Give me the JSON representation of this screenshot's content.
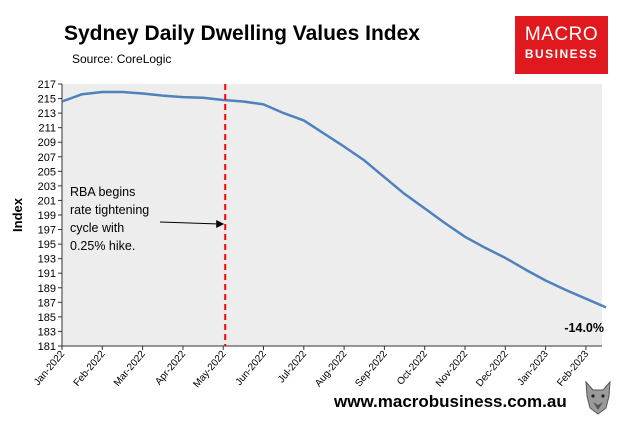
{
  "header": {
    "title": "Sydney Daily Dwelling Values Index",
    "source": "Source: CoreLogic"
  },
  "logo": {
    "line1": "MACRO",
    "line2": "BUSINESS"
  },
  "footer": {
    "website": "www.macrobusiness.com.au"
  },
  "colors": {
    "series": "#4f81bd",
    "plot_bg": "#ededed",
    "marker_line": "#ff0000",
    "logo_bg": "#e0191f"
  },
  "chart_data": {
    "type": "line",
    "title": "Sydney Daily Dwelling Values Index",
    "xlabel": "",
    "ylabel": "Index",
    "ylim": [
      181,
      217
    ],
    "yticks": [
      181,
      183,
      185,
      187,
      189,
      191,
      193,
      195,
      197,
      199,
      201,
      203,
      205,
      207,
      209,
      211,
      213,
      215,
      217
    ],
    "xticks": [
      "Jan-2022",
      "Feb-2022",
      "Mar-2022",
      "Apr-2022",
      "May-2022",
      "Jun-2022",
      "Jul-2022",
      "Aug-2022",
      "Sep-2022",
      "Oct-2022",
      "Nov-2022",
      "Dec-2022",
      "Jan-2023",
      "Feb-2023"
    ],
    "series": [
      {
        "name": "Sydney Daily Dwelling Values Index",
        "x_month_index": [
          0,
          0.5,
          1,
          1.5,
          2,
          2.5,
          3,
          3.5,
          4,
          4.5,
          5,
          5.5,
          6,
          6.5,
          7,
          7.5,
          8,
          8.5,
          9,
          9.5,
          10,
          10.5,
          11,
          11.5,
          12,
          12.5,
          13,
          13.5
        ],
        "values": [
          214.6,
          215.6,
          215.9,
          215.9,
          215.7,
          215.4,
          215.2,
          215.1,
          214.8,
          214.6,
          214.2,
          213.0,
          212.0,
          210.2,
          208.4,
          206.5,
          204.2,
          201.9,
          199.9,
          197.9,
          196.0,
          194.5,
          193.1,
          191.5,
          190.0,
          188.7,
          187.5,
          186.3
        ]
      }
    ],
    "annotations": {
      "event_line_month_index": 4.05,
      "event_label_lines": [
        "RBA begins",
        "rate tightening",
        "cycle with",
        "0.25% hike."
      ],
      "end_label": "-14.0%"
    }
  }
}
